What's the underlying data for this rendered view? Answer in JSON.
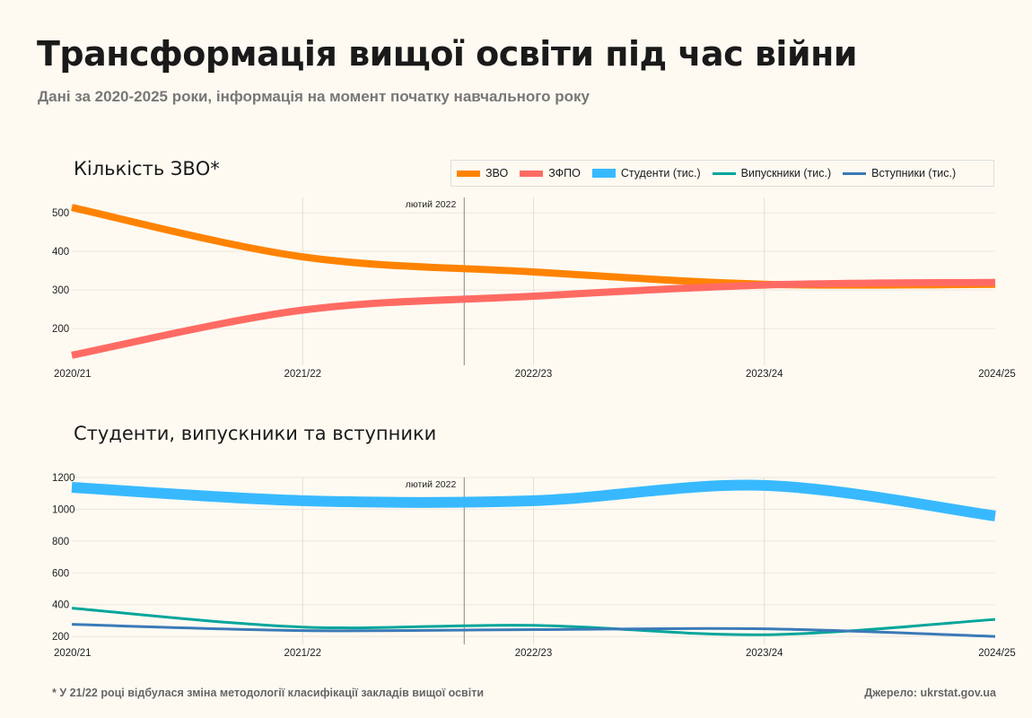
{
  "header": {
    "title": "Трансформація вищої освіти під час війни",
    "subtitle": "Дані за 2020-2025 роки, інформація на момент початку навчального року"
  },
  "footer": {
    "footnote": "* У 21/22 році відбулася зміна методології класифікації закладів вищої освіти",
    "source": "Джерело: ukrstat.gov.ua"
  },
  "legend": [
    {
      "label": "ЗВО",
      "color": "#ff8300"
    },
    {
      "label": "ЗФПО",
      "color": "#ff6b63"
    },
    {
      "label": "Студенти (тис.)",
      "color": "#38b9ff"
    },
    {
      "label": "Випускники (тис.)",
      "color": "#00a59b"
    },
    {
      "label": "Вступники (тис.)",
      "color": "#3a7ab8"
    }
  ],
  "chart_data": [
    {
      "type": "line",
      "title": "Кількість ЗВО*",
      "categories": [
        "2020/21",
        "2021/22",
        "2022/23",
        "2023/24",
        "2024/25"
      ],
      "series": [
        {
          "name": "ЗВО",
          "color": "#ff8300",
          "values": [
            514,
            386,
            347,
            315,
            315
          ]
        },
        {
          "name": "ЗФПО",
          "color": "#ff6b63",
          "values": [
            131,
            248,
            284,
            313,
            320
          ]
        }
      ],
      "yticks": [
        200,
        300,
        400,
        500
      ],
      "ylim": [
        105,
        540
      ],
      "grid": true,
      "legend": "top-right",
      "annotation": {
        "label": "лютий 2022",
        "position_between": [
          "2021/22",
          "2022/23"
        ],
        "fraction": 0.7
      }
    },
    {
      "type": "line",
      "title": "Студенти, випускники та вступники",
      "categories": [
        "2020/21",
        "2021/22",
        "2022/23",
        "2023/24",
        "2024/25"
      ],
      "series": [
        {
          "name": "Студенти (тис.)",
          "color": "#38b9ff",
          "values": [
            1138,
            1054,
            1054,
            1150,
            958
          ]
        },
        {
          "name": "Випускники (тис.)",
          "color": "#00a59b",
          "values": [
            378,
            259,
            270,
            211,
            307
          ]
        },
        {
          "name": "Вступники (тис.)",
          "color": "#3a7ab8",
          "values": [
            276,
            237,
            243,
            248,
            200
          ]
        }
      ],
      "yticks": [
        200,
        400,
        600,
        800,
        1000,
        1200
      ],
      "ylim": [
        150,
        1200
      ],
      "grid": true,
      "annotation": {
        "label": "лютий 2022",
        "position_between": [
          "2021/22",
          "2022/23"
        ],
        "fraction": 0.7
      }
    }
  ]
}
